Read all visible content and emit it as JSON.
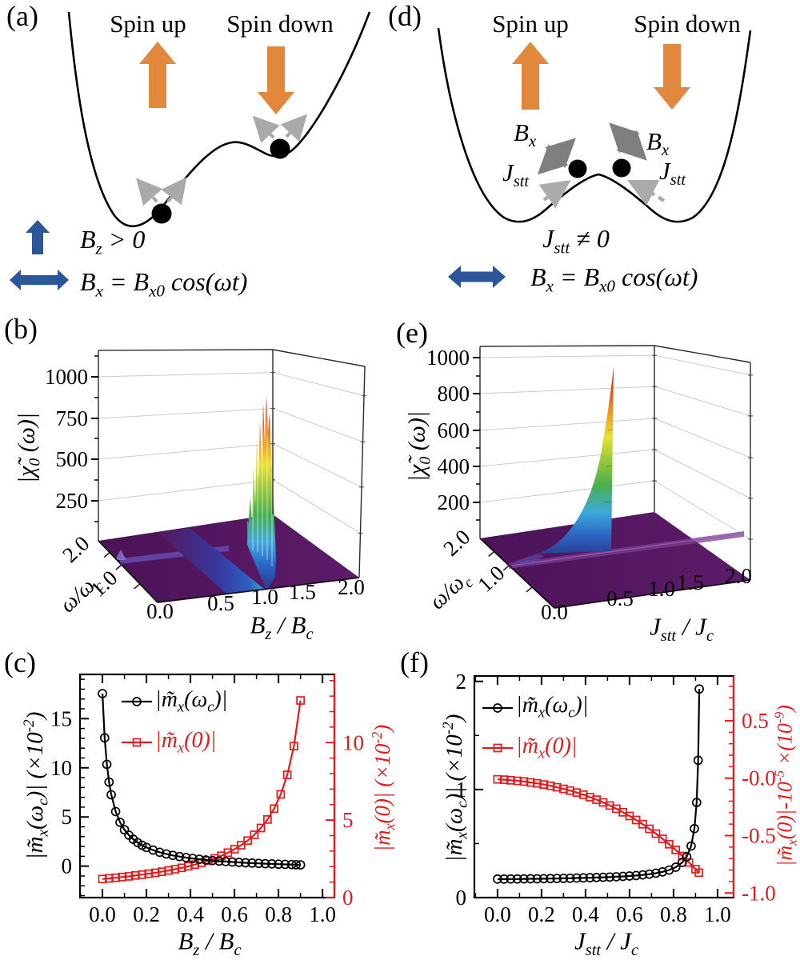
{
  "colors": {
    "red": "#e31b1c",
    "black": "#000000",
    "orange": "#e2883c",
    "blue": "#2b579a",
    "gray_dash": "#a9a9a9",
    "gray_dark": "#7f7f7f",
    "purple_floor": "#551960"
  },
  "panels": {
    "a": {
      "tag": "(a)",
      "spin_up": "Spin up",
      "spin_down": "Spin down",
      "bz": "B_{z} > 0",
      "bx": "B_{x} = B_{x0} cos(ωt)"
    },
    "d": {
      "tag": "(d)",
      "spin_up": "Spin up",
      "spin_down": "Spin down",
      "bx_small": "B_{x}",
      "jstt_small": "J_{stt}",
      "jstt": "J_{stt} ≠ 0",
      "bx": "B_{x} = B_{x0} cos(ωt)"
    },
    "b": {
      "tag": "(b)"
    },
    "e": {
      "tag": "(e)"
    },
    "c": {
      "tag": "(c)"
    },
    "f": {
      "tag": "(f)"
    }
  },
  "chart_data": [
    {
      "id": "b",
      "type": "surface",
      "axes": {
        "x": {
          "label": "B_z / B_c",
          "label_rich": "B_{z} / B_{c}",
          "ticks": [
            "0.0",
            "0.5",
            "1.0",
            "1.5",
            "2.0"
          ],
          "range": [
            0,
            2
          ]
        },
        "y": {
          "label": "ω/ω_c",
          "label_rich": "ω/ω_{c}",
          "ticks": [
            "0.0",
            "1.0",
            "2.0"
          ],
          "range": [
            0,
            2
          ]
        },
        "z": {
          "label": "|χ̃_0 (ω)|",
          "label_rich": "|χ̃_{0} (ω)|",
          "ticks": [
            "250",
            "500",
            "750",
            "1000"
          ],
          "tick_values": [
            250,
            500,
            750,
            1000
          ],
          "range": [
            0,
            1150
          ]
        }
      },
      "surface_summary": {
        "background_value": 0,
        "resonance_wall": {
          "at_x": 1.0,
          "max_z": 900,
          "appearance": "jagged rainbow divergence wall at B_z/B_c ≈ 1.0"
        },
        "ridge": {
          "along_y": 1.0,
          "appearance": "low raised ridge at ω/ω_c ≈ 1.0"
        }
      },
      "colormap": [
        "#551960",
        "#2b53b0",
        "#3fa9dc",
        "#46b04e",
        "#9cc93a",
        "#e8e32c",
        "#f09c21",
        "#e4511c",
        "#d81f17"
      ]
    },
    {
      "id": "e",
      "type": "surface",
      "axes": {
        "x": {
          "label": "J_stt / J_c",
          "label_rich": "J_{stt} / J_{c}",
          "ticks": [
            "0.0",
            "0.5",
            "1.0",
            "1.5",
            "2.0"
          ],
          "range": [
            0,
            2
          ]
        },
        "y": {
          "label": "ω/ω_c",
          "label_rich": "ω/ω_{c}",
          "ticks": [
            "0.0",
            "1.0",
            "2.0"
          ],
          "range": [
            0,
            2
          ]
        },
        "z": {
          "label": "|χ̃_0 (ω)|",
          "label_rich": "|χ̃_{0} (ω)|",
          "ticks": [
            "200",
            "400",
            "600",
            "800",
            "1000"
          ],
          "tick_values": [
            200,
            400,
            600,
            800,
            1000
          ],
          "range": [
            0,
            1050
          ]
        }
      },
      "surface_summary": {
        "background_value": 0,
        "resonance_spike": {
          "at_x": 0.5,
          "max_z": 930,
          "appearance": "sharp smooth rainbow spike at J_stt/J_c ≈ 0.5"
        },
        "ridge": {
          "along_y": 1.0,
          "appearance": "low raised ridge at ω/ω_c ≈ 1.0"
        }
      },
      "colormap": [
        "#551960",
        "#2b53b0",
        "#3fa9dc",
        "#46b04e",
        "#9cc93a",
        "#e8e32c",
        "#f09c21",
        "#e4511c",
        "#d81f17"
      ]
    },
    {
      "id": "c",
      "type": "line",
      "axes": {
        "x": {
          "label_rich": "B_{z} / B_{c}",
          "range": [
            -0.102,
            1.054
          ],
          "majors": [
            0,
            0.2,
            0.4,
            0.6,
            0.8,
            1
          ],
          "labels": [
            "0.0",
            "0.2",
            "0.4",
            "0.6",
            "0.8",
            "1.0"
          ],
          "minor_step": 0.1
        },
        "y_left": {
          "label_rich": "|m̃_{x}(ω_{c})| (×10^{-2})",
          "range": [
            -3.2,
            19.5
          ],
          "majors": [
            0,
            5,
            10,
            15
          ],
          "labels": [
            "0",
            "5",
            "10",
            "15"
          ],
          "minor_step": 1,
          "color": "black"
        },
        "y_right": {
          "label_rich": "|m̃_{x}(0)| (×10^{-2})",
          "range": [
            0,
            14.4
          ],
          "majors": [
            0,
            5,
            10
          ],
          "labels": [
            "0",
            "5",
            "10"
          ],
          "minor_step": 1,
          "color": "red"
        }
      },
      "legend": {
        "items": [
          {
            "label_rich": "|m̃_{x}(ω_{c})|",
            "series": "mx_wc"
          },
          {
            "label_rich": "|m̃_{x}(0)|",
            "series": "mx_0"
          }
        ]
      },
      "series": [
        {
          "name": "mx_0",
          "axis": "y_right",
          "marker": "square",
          "color": "red",
          "x": [
            0,
            0.03,
            0.06,
            0.09,
            0.12,
            0.15,
            0.18,
            0.21,
            0.24,
            0.27,
            0.3,
            0.33,
            0.36,
            0.39,
            0.42,
            0.45,
            0.48,
            0.51,
            0.54,
            0.57,
            0.6,
            0.63,
            0.66,
            0.69,
            0.72,
            0.75,
            0.78,
            0.81,
            0.84,
            0.87,
            0.9
          ],
          "y": [
            1.2,
            1.24,
            1.28,
            1.33,
            1.37,
            1.43,
            1.48,
            1.54,
            1.6,
            1.67,
            1.75,
            1.83,
            1.92,
            2.02,
            2.13,
            2.25,
            2.38,
            2.53,
            2.7,
            2.9,
            3.12,
            3.38,
            3.68,
            4.05,
            4.49,
            5.04,
            5.74,
            6.66,
            7.92,
            9.77,
            12.72
          ]
        },
        {
          "name": "mx_wc",
          "axis": "y_left",
          "marker": "circle",
          "color": "black",
          "x": [
            0,
            0.01,
            0.02,
            0.03,
            0.04,
            0.06,
            0.08,
            0.1,
            0.12,
            0.14,
            0.16,
            0.18,
            0.2,
            0.23,
            0.26,
            0.29,
            0.32,
            0.35,
            0.38,
            0.41,
            0.44,
            0.47,
            0.5,
            0.53,
            0.56,
            0.59,
            0.62,
            0.65,
            0.68,
            0.71,
            0.74,
            0.77,
            0.8,
            0.83,
            0.86,
            0.88,
            0.9
          ],
          "y": [
            17.55,
            13.05,
            10.35,
            8.55,
            7.26,
            5.55,
            4.46,
            3.7,
            3.15,
            2.73,
            2.39,
            2.12,
            1.9,
            1.63,
            1.41,
            1.24,
            1.09,
            0.97,
            0.87,
            0.78,
            0.7,
            0.63,
            0.57,
            0.51,
            0.47,
            0.42,
            0.38,
            0.34,
            0.31,
            0.28,
            0.25,
            0.23,
            0.2,
            0.18,
            0.16,
            0.14,
            0.13
          ]
        }
      ]
    },
    {
      "id": "f",
      "type": "line",
      "axes": {
        "x": {
          "label_rich": "J_{stt} / J_{c}",
          "range": [
            -0.105,
            1.073
          ],
          "majors": [
            0,
            0.2,
            0.4,
            0.6,
            0.8,
            1
          ],
          "labels": [
            "0.0",
            "0.2",
            "0.4",
            "0.6",
            "0.8",
            "1.0"
          ],
          "minor_step": 0.1
        },
        "y_left": {
          "label_rich": "|m̃_{x}(ω_{c})| (×10^{-2})",
          "range": [
            0,
            2.05
          ],
          "majors": [
            0,
            1,
            2
          ],
          "labels": [
            "0",
            "1",
            "2"
          ],
          "minor_step": 0.5,
          "color": "black"
        },
        "y_right": {
          "label_rich": "|m̃_{x}(0)|-10^{-5} ×(10^{-9})",
          "range": [
            -1.04,
            0.89
          ],
          "majors": [
            0.5,
            0,
            -0.5,
            -1
          ],
          "labels": [
            "0.5",
            "-0.0",
            "-0.5",
            "-1.0"
          ],
          "minor_step": 0.1,
          "color": "red"
        }
      },
      "legend": {
        "items": [
          {
            "label_rich": "|m̃_{x}(ω_{c})|",
            "series": "mx_wc"
          },
          {
            "label_rich": "|m̃_{x}(0)|",
            "series": "mx_0"
          }
        ]
      },
      "series": [
        {
          "name": "mx_0",
          "axis": "y_right",
          "marker": "square",
          "color": "red",
          "x": [
            0,
            0.03,
            0.06,
            0.09,
            0.12,
            0.15,
            0.18,
            0.21,
            0.24,
            0.27,
            0.3,
            0.33,
            0.36,
            0.39,
            0.42,
            0.45,
            0.48,
            0.51,
            0.54,
            0.57,
            0.6,
            0.63,
            0.66,
            0.69,
            0.72,
            0.75,
            0.78,
            0.81,
            0.84,
            0.87,
            0.9,
            0.915
          ],
          "y": [
            -0.01,
            -0.013,
            -0.018,
            -0.023,
            -0.029,
            -0.037,
            -0.045,
            -0.055,
            -0.066,
            -0.079,
            -0.093,
            -0.108,
            -0.125,
            -0.144,
            -0.165,
            -0.187,
            -0.211,
            -0.238,
            -0.266,
            -0.297,
            -0.329,
            -0.364,
            -0.401,
            -0.441,
            -0.483,
            -0.528,
            -0.575,
            -0.625,
            -0.678,
            -0.734,
            -0.793,
            -0.823
          ]
        },
        {
          "name": "mx_wc",
          "axis": "y_left",
          "marker": "circle",
          "color": "black",
          "x": [
            0,
            0.03,
            0.06,
            0.09,
            0.12,
            0.15,
            0.18,
            0.21,
            0.24,
            0.27,
            0.3,
            0.33,
            0.36,
            0.39,
            0.42,
            0.45,
            0.48,
            0.51,
            0.54,
            0.57,
            0.6,
            0.63,
            0.66,
            0.69,
            0.72,
            0.75,
            0.78,
            0.81,
            0.84,
            0.86,
            0.88,
            0.895,
            0.905,
            0.912,
            0.917
          ],
          "y": [
            0.171,
            0.171,
            0.172,
            0.172,
            0.173,
            0.174,
            0.174,
            0.175,
            0.176,
            0.177,
            0.178,
            0.179,
            0.181,
            0.182,
            0.184,
            0.186,
            0.188,
            0.19,
            0.193,
            0.196,
            0.2,
            0.204,
            0.21,
            0.217,
            0.226,
            0.238,
            0.255,
            0.281,
            0.326,
            0.378,
            0.477,
            0.638,
            0.88,
            1.27,
            1.93
          ]
        }
      ]
    }
  ]
}
